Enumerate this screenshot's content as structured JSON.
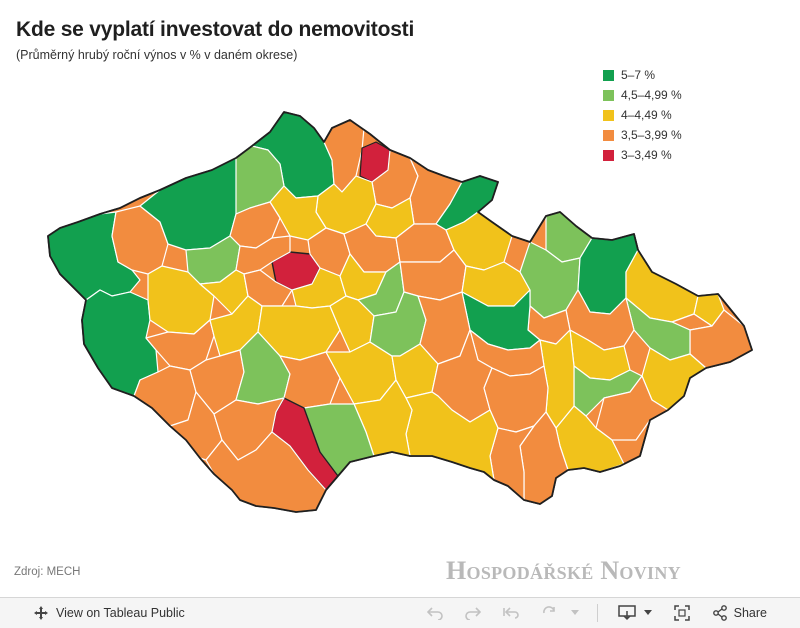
{
  "header": {
    "title": "Kde se vyplatí investovat do nemovitosti",
    "subtitle": "(Průměrný hrubý roční výnos v % v daném okrese)"
  },
  "legend": [
    {
      "label": "5–7 %",
      "color": "#12a04f"
    },
    {
      "label": "4,5–4,99 %",
      "color": "#7dc25b"
    },
    {
      "label": "4–4,49 %",
      "color": "#f1c21b"
    },
    {
      "label": "3,5–3,99 %",
      "color": "#f28c3f"
    },
    {
      "label": "3–3,49 %",
      "color": "#d2213c"
    }
  ],
  "footer": {
    "source": "Zdroj: MECH",
    "brand": "Hospodářské Noviny"
  },
  "toolbar": {
    "view_label": "View on Tableau Public",
    "share_label": "Share",
    "icons": [
      "expand-icon",
      "undo-icon",
      "redo-icon",
      "revert-icon",
      "refresh-icon",
      "dropdown-icon",
      "download-icon",
      "fullscreen-icon",
      "share-icon"
    ]
  }
}
